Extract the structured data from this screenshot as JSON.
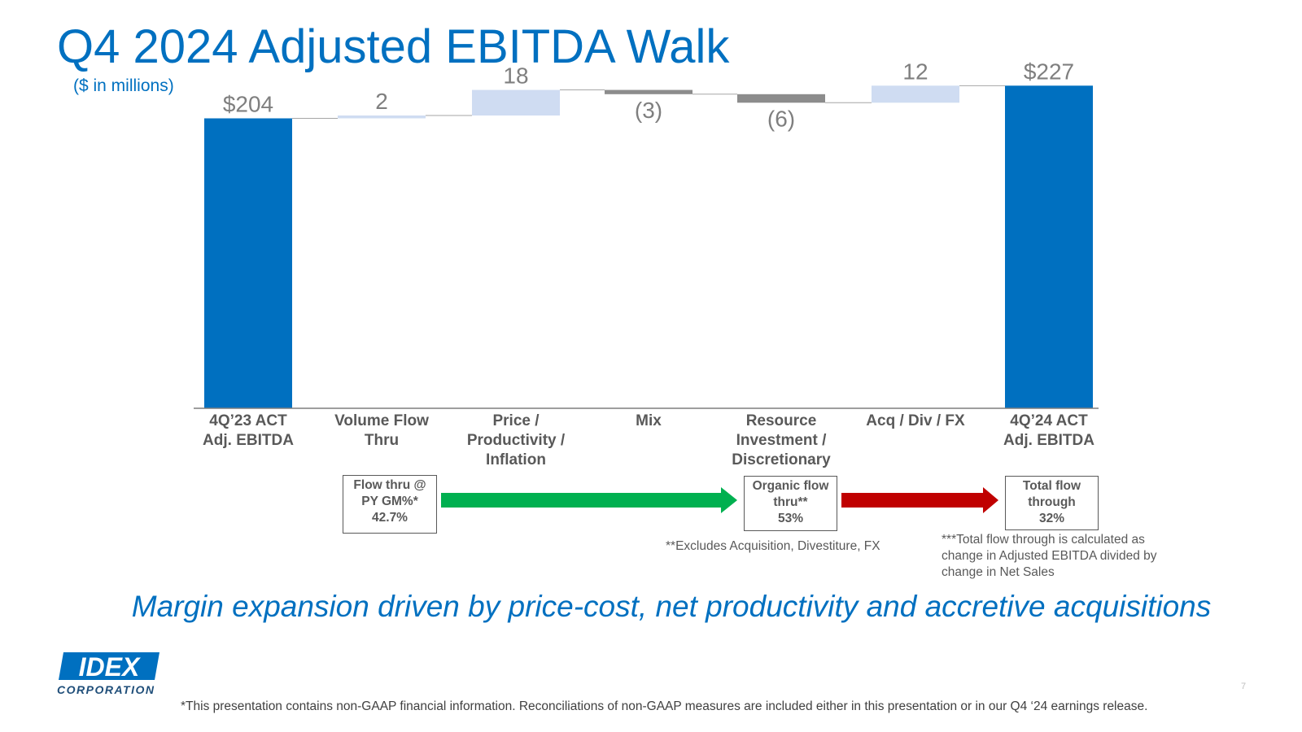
{
  "slide": {
    "title": "Q4 2024 Adjusted EBITDA Walk",
    "subtitle": "($ in millions)",
    "headline": "Margin expansion driven by price-cost, net productivity and accretive acquisitions",
    "page_number": "7",
    "footnote": "*This presentation contains non-GAAP financial information. Reconciliations of non-GAAP measures are included either in this presentation or in our Q4 ‘24 earnings release."
  },
  "chart_data": {
    "type": "bar",
    "subtype": "waterfall",
    "title": "",
    "xlabel": "",
    "ylabel": "",
    "ylim": [
      0,
      227
    ],
    "categories": [
      [
        "4Q’23 ACT",
        "Adj. EBITDA"
      ],
      [
        "Volume Flow",
        "Thru"
      ],
      [
        "Price /",
        "Productivity /",
        "Inflation"
      ],
      [
        "Mix"
      ],
      [
        "Resource",
        "Investment /",
        "Discretionary"
      ],
      [
        "Acq / Div / FX"
      ],
      [
        "4Q’24 ACT",
        "Adj. EBITDA"
      ]
    ],
    "values": [
      204,
      2,
      18,
      -3,
      -6,
      12,
      227
    ],
    "kinds": [
      "total",
      "delta",
      "delta",
      "delta",
      "delta",
      "delta",
      "total"
    ],
    "data_labels": [
      "$204",
      "2",
      "18",
      "(3)",
      "(6)",
      "12",
      "$227"
    ],
    "colors": {
      "total": "#0070c0",
      "increase": "#cfdcf2",
      "decrease": "#8c8c8c",
      "connector": "#a6a6a6",
      "label": "#7f7f7f"
    }
  },
  "flow_boxes": [
    {
      "lines": [
        "Flow thru @",
        "PY GM%*",
        "42.7%"
      ]
    },
    {
      "lines": [
        "Organic flow",
        "thru**",
        "53%"
      ]
    },
    {
      "lines": [
        "Total flow",
        "through",
        "32%"
      ]
    }
  ],
  "arrows": {
    "first_color": "#00b050",
    "second_color": "#c00000"
  },
  "notes": {
    "excludes": "**Excludes Acquisition, Divestiture, FX",
    "total_flow": [
      "***Total flow through is calculated as",
      "change in Adjusted EBITDA divided by",
      "change in Net Sales"
    ]
  },
  "logo": {
    "mark": "IDEX",
    "sub": "CORPORATION"
  }
}
